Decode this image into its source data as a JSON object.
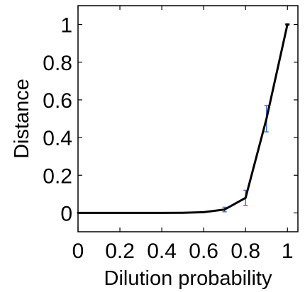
{
  "chart_data": {
    "type": "line",
    "title": "",
    "xlabel": "Dilution probability",
    "ylabel": "Distance",
    "xlim": [
      0,
      1.05
    ],
    "ylim": [
      -0.1,
      1.1
    ],
    "grid": false,
    "legend": "none",
    "x_ticks": [
      0,
      0.2,
      0.4,
      0.6,
      0.8,
      1
    ],
    "x_tick_labels": [
      "0",
      "0.2",
      "0.4",
      "0.6",
      "0.8",
      "1"
    ],
    "y_ticks": [
      0,
      0.2,
      0.4,
      0.6,
      0.8,
      1
    ],
    "y_tick_labels": [
      "0",
      "0.2",
      "0.4",
      "0.6",
      "0.8",
      "1"
    ],
    "series": [
      {
        "x": [
          0,
          0.1,
          0.2,
          0.3,
          0.4,
          0.5,
          0.6,
          0.7,
          0.8,
          0.9,
          1.0
        ],
        "y": [
          0,
          0,
          0,
          0,
          0,
          0.001,
          0.004,
          0.018,
          0.08,
          0.5,
          1.0
        ],
        "error": [
          0,
          0,
          0,
          0,
          0,
          0,
          0,
          0.012,
          0.04,
          0.07,
          0
        ],
        "color": "#000000",
        "error_color": "#4a6fd0"
      }
    ]
  }
}
